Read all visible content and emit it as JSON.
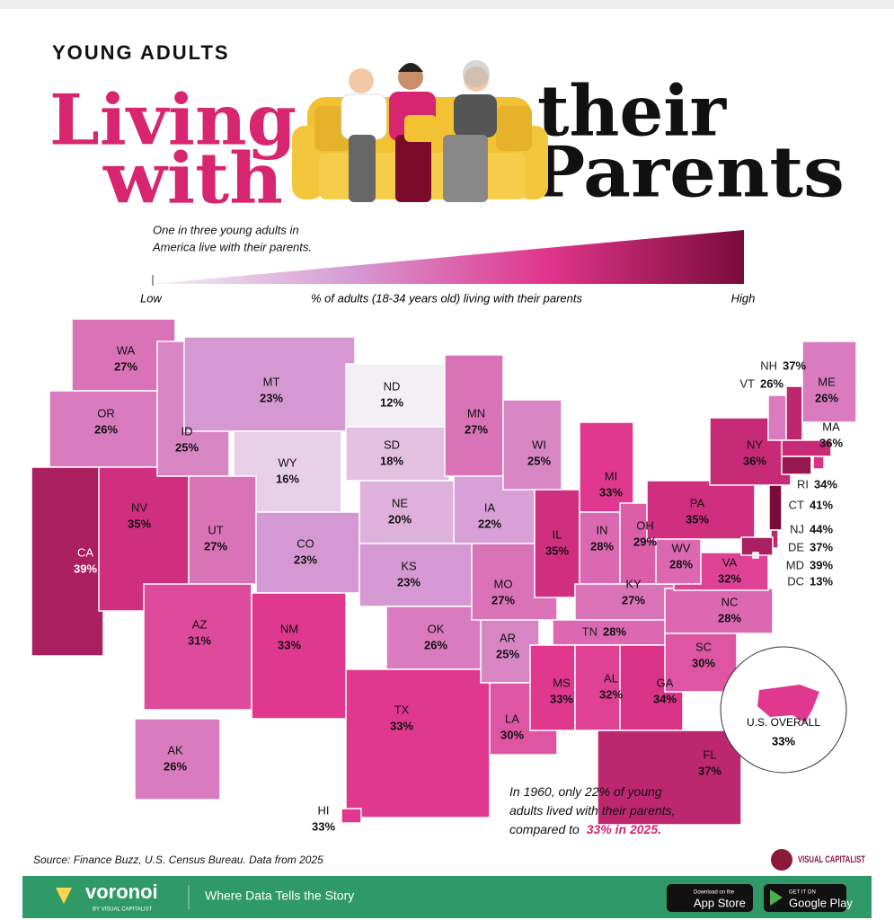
{
  "chart_data": {
    "type": "choropleth",
    "kicker": "YOUNG ADULTS",
    "title_parts": [
      "Living",
      "with",
      "their",
      "Parents"
    ],
    "subtitle": [
      "One in three young adults in",
      "America live with their parents."
    ],
    "legend": {
      "low": "Low",
      "high": "High",
      "label": "% of adults (18-34 years old) living with their parents"
    },
    "colorscale": [
      "#f4eff5",
      "#d69bd4",
      "#e0358c",
      "#7a0b3a"
    ],
    "categories": [
      "WA",
      "OR",
      "CA",
      "NV",
      "ID",
      "MT",
      "WY",
      "UT",
      "AZ",
      "CO",
      "NM",
      "ND",
      "SD",
      "NE",
      "KS",
      "OK",
      "TX",
      "MN",
      "IA",
      "MO",
      "AR",
      "LA",
      "WI",
      "IL",
      "MI",
      "IN",
      "OH",
      "KY",
      "TN",
      "MS",
      "AL",
      "GA",
      "FL",
      "SC",
      "NC",
      "VA",
      "WV",
      "PA",
      "NY",
      "VT",
      "NH",
      "ME",
      "MA",
      "RI",
      "CT",
      "NJ",
      "DE",
      "MD",
      "DC",
      "AK",
      "HI"
    ],
    "values": [
      27,
      26,
      39,
      35,
      25,
      23,
      16,
      27,
      31,
      23,
      33,
      12,
      18,
      20,
      23,
      26,
      33,
      27,
      22,
      27,
      25,
      30,
      25,
      35,
      33,
      28,
      29,
      27,
      28,
      33,
      32,
      34,
      37,
      30,
      28,
      32,
      28,
      35,
      36,
      26,
      37,
      26,
      36,
      34,
      41,
      44,
      37,
      39,
      13,
      26,
      33
    ],
    "value_labels": [
      "27%",
      "26%",
      "39%",
      "35%",
      "25%",
      "23%",
      "16%",
      "27%",
      "31%",
      "23%",
      "33%",
      "12%",
      "18%",
      "20%",
      "23%",
      "26%",
      "33%",
      "27%",
      "22%",
      "27%",
      "25%",
      "30%",
      "25%",
      "35%",
      "33%",
      "28%",
      "29%",
      "27%",
      "28%",
      "33%",
      "32%",
      "34%",
      "37%",
      "30%",
      "28%",
      "32%",
      "28%",
      "35%",
      "36%",
      "26%",
      "37%",
      "26%",
      "36%",
      "34%",
      "41%",
      "44%",
      "37%",
      "39%",
      "13%",
      "26%",
      "33%"
    ],
    "overall": {
      "label": "U.S. OVERALL",
      "value": 33,
      "value_label": "33%"
    },
    "note": {
      "lines": [
        "In 1960, only 22% of young",
        "adults lived with their parents,",
        "compared to"
      ],
      "highlight": "33% in 2025."
    },
    "source": "Source: Finance Buzz, U.S. Census Bureau. Data from 2025",
    "brand": "VISUAL CAPITALIST"
  },
  "footer": {
    "logo": "voronoi",
    "logo_sub": "BY VISUAL CAPITALIST",
    "tagline": "Where Data Tells the Story",
    "app_store": [
      "Download on the",
      "App Store"
    ],
    "google_play": [
      "GET IT ON",
      "Google Play"
    ]
  }
}
